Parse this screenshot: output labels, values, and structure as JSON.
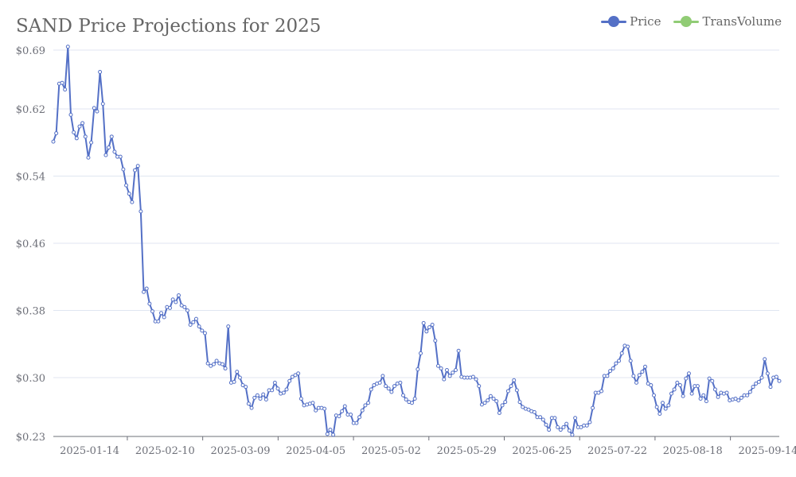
{
  "chart_data": {
    "type": "line",
    "title": "SAND Price Projections for 2025",
    "legend": {
      "placement": "top-right",
      "items": [
        {
          "name": "Price",
          "color": "#5470c6"
        },
        {
          "name": "TransVolume",
          "color": "#91cc75"
        }
      ]
    },
    "y_axis": {
      "ylim": [
        0.23,
        0.69
      ],
      "ticks": [
        0.23,
        0.3,
        0.38,
        0.46,
        0.54,
        0.62,
        0.69
      ],
      "tick_labels": [
        "$0.23",
        "$0.30",
        "$0.38",
        "$0.46",
        "$0.54",
        "$0.62",
        "$0.69"
      ],
      "grid": true
    },
    "x_axis": {
      "start_date": "2025-01-01",
      "end_date": "2025-09-18",
      "tick_labels": [
        "2025-01-14",
        "2025-02-10",
        "2025-03-09",
        "2025-04-05",
        "2025-05-02",
        "2025-05-29",
        "2025-06-25",
        "2025-07-22",
        "2025-08-18",
        "2025-09-14"
      ]
    },
    "series": [
      {
        "name": "Price",
        "color": "#5470c6",
        "values": [
          0.581,
          0.591,
          0.65,
          0.651,
          0.643,
          0.694,
          0.613,
          0.592,
          0.585,
          0.599,
          0.603,
          0.587,
          0.562,
          0.58,
          0.621,
          0.617,
          0.664,
          0.626,
          0.565,
          0.574,
          0.587,
          0.569,
          0.563,
          0.563,
          0.548,
          0.529,
          0.519,
          0.509,
          0.547,
          0.552,
          0.498,
          0.402,
          0.406,
          0.388,
          0.379,
          0.367,
          0.367,
          0.377,
          0.372,
          0.384,
          0.383,
          0.393,
          0.39,
          0.398,
          0.386,
          0.384,
          0.38,
          0.363,
          0.366,
          0.37,
          0.361,
          0.356,
          0.353,
          0.317,
          0.314,
          0.316,
          0.32,
          0.317,
          0.316,
          0.311,
          0.361,
          0.294,
          0.295,
          0.307,
          0.3,
          0.291,
          0.289,
          0.269,
          0.264,
          0.276,
          0.279,
          0.275,
          0.28,
          0.274,
          0.285,
          0.285,
          0.294,
          0.287,
          0.281,
          0.282,
          0.286,
          0.296,
          0.301,
          0.303,
          0.305,
          0.275,
          0.267,
          0.268,
          0.269,
          0.27,
          0.261,
          0.264,
          0.264,
          0.263,
          0.233,
          0.238,
          0.232,
          0.255,
          0.254,
          0.26,
          0.266,
          0.256,
          0.256,
          0.246,
          0.246,
          0.253,
          0.261,
          0.267,
          0.27,
          0.286,
          0.291,
          0.293,
          0.294,
          0.302,
          0.29,
          0.287,
          0.283,
          0.29,
          0.293,
          0.294,
          0.279,
          0.274,
          0.271,
          0.27,
          0.275,
          0.31,
          0.329,
          0.365,
          0.355,
          0.36,
          0.363,
          0.344,
          0.314,
          0.311,
          0.298,
          0.309,
          0.302,
          0.306,
          0.309,
          0.332,
          0.301,
          0.3,
          0.3,
          0.3,
          0.301,
          0.298,
          0.29,
          0.268,
          0.27,
          0.273,
          0.278,
          0.275,
          0.272,
          0.258,
          0.267,
          0.271,
          0.284,
          0.29,
          0.297,
          0.285,
          0.271,
          0.265,
          0.263,
          0.262,
          0.26,
          0.259,
          0.253,
          0.253,
          0.25,
          0.244,
          0.238,
          0.252,
          0.252,
          0.241,
          0.238,
          0.241,
          0.245,
          0.237,
          0.232,
          0.252,
          0.241,
          0.241,
          0.243,
          0.243,
          0.247,
          0.264,
          0.282,
          0.282,
          0.284,
          0.302,
          0.302,
          0.308,
          0.311,
          0.317,
          0.32,
          0.329,
          0.338,
          0.337,
          0.32,
          0.302,
          0.294,
          0.303,
          0.307,
          0.313,
          0.293,
          0.291,
          0.279,
          0.265,
          0.257,
          0.27,
          0.263,
          0.267,
          0.281,
          0.286,
          0.294,
          0.291,
          0.278,
          0.299,
          0.305,
          0.281,
          0.29,
          0.29,
          0.275,
          0.279,
          0.272,
          0.299,
          0.296,
          0.286,
          0.277,
          0.282,
          0.281,
          0.282,
          0.273,
          0.274,
          0.275,
          0.273,
          0.276,
          0.279,
          0.279,
          0.283,
          0.289,
          0.293,
          0.295,
          0.3,
          0.322,
          0.305,
          0.289,
          0.3,
          0.301,
          0.296
        ],
        "note": "approximate daily values read from the chart"
      },
      {
        "name": "TransVolume",
        "color": "#91cc75",
        "values": []
      }
    ]
  }
}
